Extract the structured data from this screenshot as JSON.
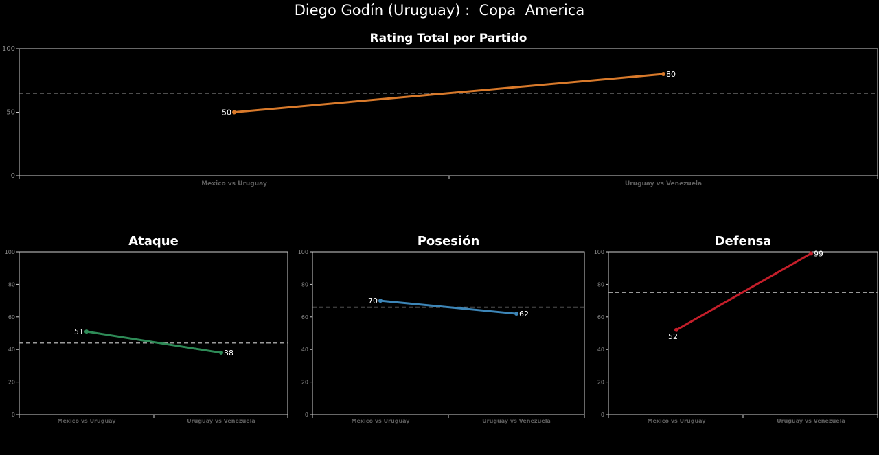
{
  "title": "Diego Godín (Uruguay) :  Copa  America",
  "colors": {
    "background": "#000000",
    "axis": "#cfcfcf",
    "average_line": "#9a9a9a"
  },
  "chart_data": [
    {
      "type": "line",
      "title": "Rating Total por Partido",
      "categories": [
        "Mexico vs Uruguay",
        "Uruguay vs Venezuela"
      ],
      "values": [
        50,
        80
      ],
      "data_labels": [
        "50",
        "80"
      ],
      "reference_line": 65,
      "ylim": [
        0,
        100
      ],
      "yticks": [
        0,
        50,
        100
      ],
      "color": "#d97a2b",
      "grid": false
    },
    {
      "type": "line",
      "title": "Ataque",
      "categories": [
        "Mexico vs Uruguay",
        "Uruguay vs Venezuela"
      ],
      "values": [
        51,
        38
      ],
      "data_labels": [
        "51",
        "38"
      ],
      "reference_line": 44,
      "ylim": [
        0,
        100
      ],
      "yticks": [
        0,
        20,
        40,
        60,
        80,
        100
      ],
      "color": "#2e8b57",
      "grid": false
    },
    {
      "type": "line",
      "title": "Posesión",
      "categories": [
        "Mexico vs Uruguay",
        "Uruguay vs Venezuela"
      ],
      "values": [
        70,
        62
      ],
      "data_labels": [
        "70",
        "62"
      ],
      "reference_line": 66,
      "ylim": [
        0,
        100
      ],
      "yticks": [
        0,
        20,
        40,
        60,
        80,
        100
      ],
      "color": "#3d86b8",
      "grid": false
    },
    {
      "type": "line",
      "title": "Defensa",
      "categories": [
        "Mexico vs Uruguay",
        "Uruguay vs Venezuela"
      ],
      "values": [
        52,
        99
      ],
      "data_labels": [
        "52",
        "99"
      ],
      "reference_line": 75,
      "ylim": [
        0,
        100
      ],
      "yticks": [
        0,
        20,
        40,
        60,
        80,
        100
      ],
      "color": "#c41e2a",
      "grid": false
    }
  ]
}
